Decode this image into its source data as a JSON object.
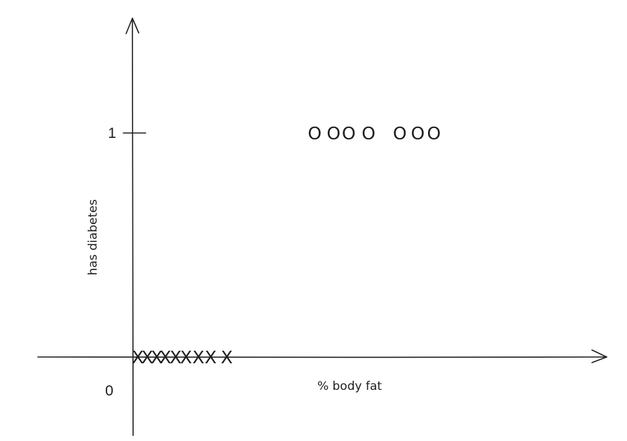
{
  "chart_data": {
    "type": "scatter",
    "title": "",
    "xlabel": "% body fat",
    "ylabel": "has diabetes",
    "y_ticks": [
      {
        "value": 0,
        "label": "0"
      },
      {
        "value": 1,
        "label": "1"
      }
    ],
    "ylim": [
      -0.35,
      1.5
    ],
    "xlim": [
      -1,
      49
    ],
    "grid": false,
    "series": [
      {
        "marker": "X",
        "x": [
          0.5,
          1.5,
          2.5,
          3.4,
          4.5,
          5.6,
          6.9,
          8.2,
          9.9
        ],
        "y": [
          0,
          0,
          0,
          0,
          0,
          0,
          0,
          0,
          0
        ]
      },
      {
        "marker": "O",
        "x": [
          19.2,
          21.2,
          22.8,
          24.9,
          28.2,
          30.1,
          31.8
        ],
        "y": [
          1,
          1,
          1,
          1,
          1,
          1,
          1
        ]
      }
    ]
  }
}
